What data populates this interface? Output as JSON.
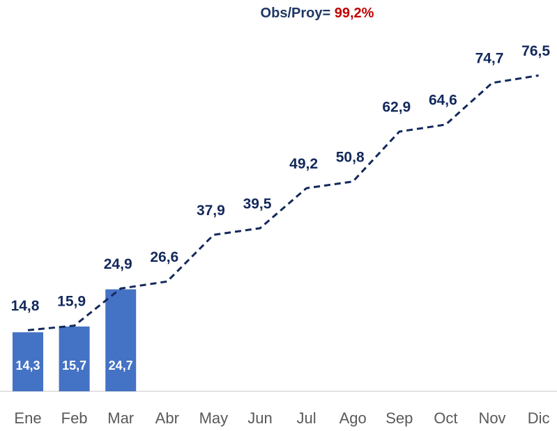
{
  "chart_data": {
    "type": "combo",
    "title": "Obs/Proy=",
    "annotation": "99,2%",
    "title_color": "#1f3864",
    "annotation_color": "#c00000",
    "categories": [
      "Ene",
      "Feb",
      "Mar",
      "Abr",
      "May",
      "Jun",
      "Jul",
      "Ago",
      "Sep",
      "Oct",
      "Nov",
      "Dic"
    ],
    "series": [
      {
        "type": "bar",
        "color": "#4472c4",
        "values": [
          14.3,
          15.7,
          24.7,
          null,
          null,
          null,
          null,
          null,
          null,
          null,
          null,
          null
        ],
        "value_labels": [
          "14,3",
          "15,7",
          "24,7",
          null,
          null,
          null,
          null,
          null,
          null,
          null,
          null,
          null
        ]
      },
      {
        "type": "line",
        "color": "#13295c",
        "dashed": true,
        "values": [
          14.8,
          15.9,
          24.9,
          26.6,
          37.9,
          39.5,
          49.2,
          50.8,
          62.9,
          64.6,
          74.7,
          76.5
        ],
        "value_labels": [
          "14,8",
          "15,9",
          "24,9",
          "26,6",
          "37,9",
          "39,5",
          "49,2",
          "50,8",
          "62,9",
          "64,6",
          "74,7",
          "76,5"
        ]
      }
    ]
  }
}
